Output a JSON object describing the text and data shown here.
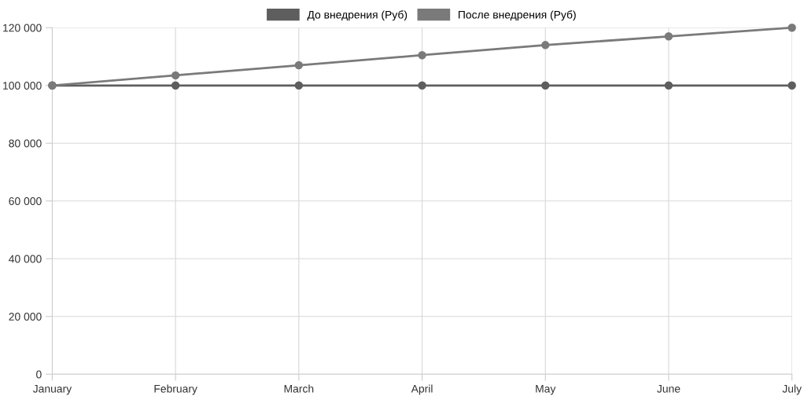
{
  "chart_data": {
    "type": "line",
    "categories": [
      "January",
      "February",
      "March",
      "April",
      "May",
      "June",
      "July"
    ],
    "series": [
      {
        "name": "До внедрения (Руб)",
        "color": "#5e5e5e",
        "values": [
          100000,
          100000,
          100000,
          100000,
          100000,
          100000,
          100000
        ]
      },
      {
        "name": "После внедрения (Руб)",
        "color": "#7a7a7a",
        "values": [
          100000,
          103500,
          107000,
          110500,
          114000,
          117000,
          120000
        ]
      }
    ],
    "ylim": [
      0,
      120000
    ],
    "yticks": [
      {
        "value": 0,
        "label": "0"
      },
      {
        "value": 20000,
        "label": "20 000"
      },
      {
        "value": 40000,
        "label": "40 000"
      },
      {
        "value": 60000,
        "label": "60 000"
      },
      {
        "value": 80000,
        "label": "80 000"
      },
      {
        "value": 100000,
        "label": "100 000"
      },
      {
        "value": 120000,
        "label": "120 000"
      }
    ],
    "grid": true,
    "legend": "top",
    "marker": "circle",
    "line_style": "solid"
  }
}
